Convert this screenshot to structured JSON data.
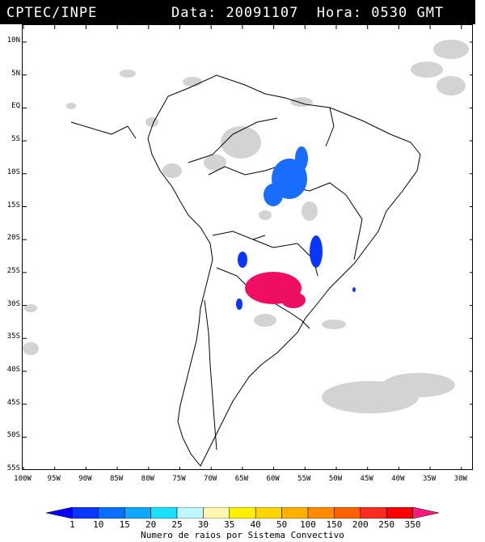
{
  "header": {
    "source": "CPTEC/INPE",
    "date_label": "Data:",
    "date_value": "20091107",
    "time_label": "Hora:",
    "time_value": "0530",
    "time_zone": "GMT"
  },
  "map": {
    "lat_labels": [
      "10N",
      "5N",
      "EQ",
      "5S",
      "10S",
      "15S",
      "20S",
      "25S",
      "30S",
      "35S",
      "40S",
      "45S",
      "50S",
      "55S"
    ],
    "lon_labels": [
      "100W",
      "95W",
      "90W",
      "85W",
      "80W",
      "75W",
      "70W",
      "65W",
      "60W",
      "55W",
      "50W",
      "45W",
      "40W",
      "35W",
      "30W"
    ],
    "cloud_color": "#d3d3d3",
    "coast_color": "#000000"
  },
  "colorbar": {
    "title": "Numero de raios por Sistema Convectivo",
    "labels": [
      "1",
      "10",
      "15",
      "20",
      "25",
      "30",
      "35",
      "40",
      "50",
      "100",
      "150",
      "200",
      "250",
      "350"
    ],
    "colors": [
      "#0000ff",
      "#0a37ff",
      "#0a6eff",
      "#10a8ff",
      "#18e0ff",
      "#bff7ff",
      "#fff7b0",
      "#fff000",
      "#ffd400",
      "#ffb000",
      "#ff8c00",
      "#ff6000",
      "#ff2a20",
      "#ff0000",
      "#ff1a80"
    ]
  }
}
